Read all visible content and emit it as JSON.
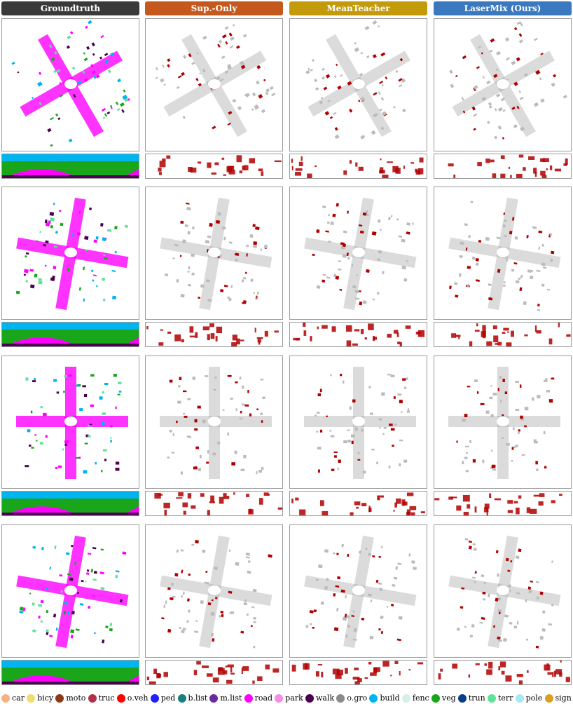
{
  "headers": [
    "Groundtruth",
    "Sup.-Only",
    "MeanTeacher",
    "LaserMix (Ours)"
  ],
  "header_colors": [
    "#3a3a3a",
    "#c5581c",
    "#c39a0a",
    "#3a78c0"
  ],
  "legend": [
    {
      "name": "car",
      "color": "#f4b183"
    },
    {
      "name": "bicy",
      "color": "#f3dc6f"
    },
    {
      "name": "moto",
      "color": "#8b3a1a"
    },
    {
      "name": "truc",
      "color": "#b0304a"
    },
    {
      "name": "o.veh",
      "color": "#ff0000"
    },
    {
      "name": "ped",
      "color": "#2020ff"
    },
    {
      "name": "b.list",
      "color": "#1a7f80"
    },
    {
      "name": "m.list",
      "color": "#6a2aa0"
    },
    {
      "name": "road",
      "color": "#ff00ff"
    },
    {
      "name": "park",
      "color": "#f58ce6"
    },
    {
      "name": "walk",
      "color": "#4b0050"
    },
    {
      "name": "o.gro",
      "color": "#8a8a8a"
    },
    {
      "name": "build",
      "color": "#00b4f0"
    },
    {
      "name": "fenc",
      "color": "#d6eee6"
    },
    {
      "name": "veg",
      "color": "#1aa61a"
    },
    {
      "name": "trun",
      "color": "#0a3c8c"
    },
    {
      "name": "terr",
      "color": "#5fe39a"
    },
    {
      "name": "pole",
      "color": "#a8e8f5"
    },
    {
      "name": "sign",
      "color": "#d8a020"
    }
  ]
}
